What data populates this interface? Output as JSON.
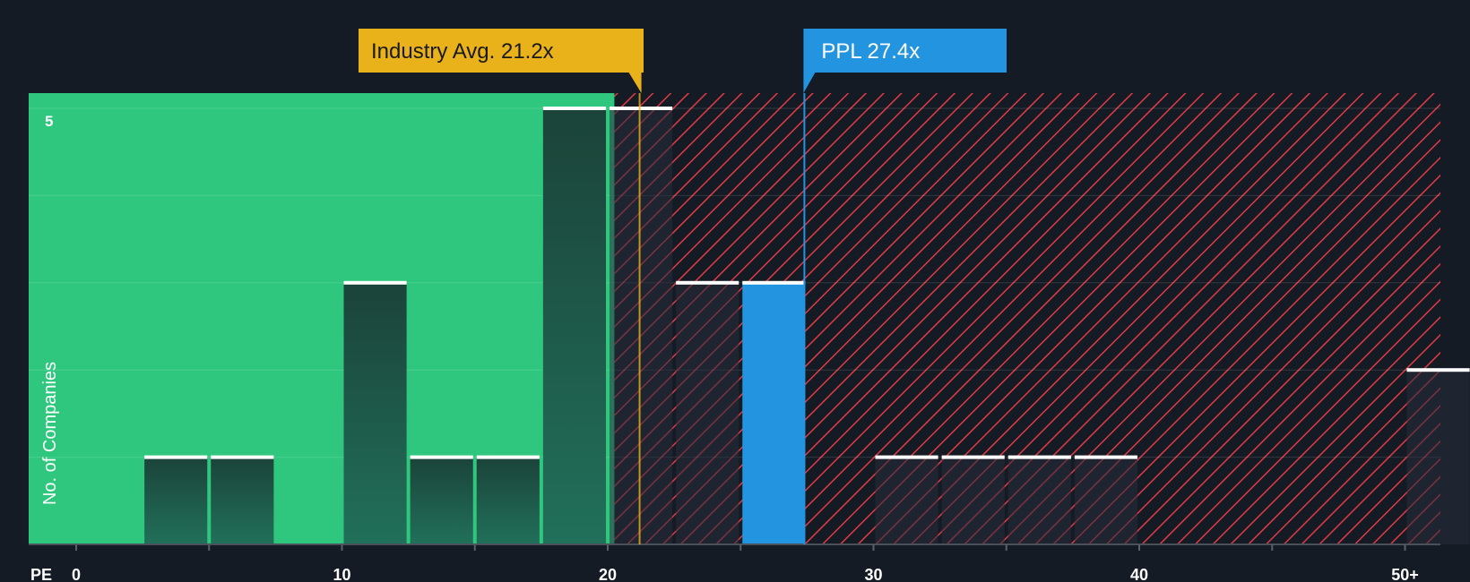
{
  "chart_data": {
    "type": "bar",
    "xlabel": "PE",
    "ylabel": "No. of Companies",
    "x_ticks": [
      {
        "value": 0,
        "label": "0"
      },
      {
        "value": 10,
        "label": "10"
      },
      {
        "value": 20,
        "label": "20"
      },
      {
        "value": 30,
        "label": "30"
      },
      {
        "value": 40,
        "label": "40"
      },
      {
        "value": 50,
        "label": "50+"
      }
    ],
    "y_ticks": [
      {
        "value": 5,
        "label": "5"
      }
    ],
    "ylim": [
      0,
      5.2
    ],
    "bin_width": 2.5,
    "bins": [
      {
        "x0": 2.5,
        "count": 1
      },
      {
        "x0": 5.0,
        "count": 1
      },
      {
        "x0": 10.0,
        "count": 3
      },
      {
        "x0": 12.5,
        "count": 1
      },
      {
        "x0": 15.0,
        "count": 1
      },
      {
        "x0": 17.5,
        "count": 5
      },
      {
        "x0": 20.0,
        "count": 5
      },
      {
        "x0": 22.5,
        "count": 3
      },
      {
        "x0": 25.0,
        "count": 3,
        "highlight": true
      },
      {
        "x0": 30.0,
        "count": 1
      },
      {
        "x0": 32.5,
        "count": 1
      },
      {
        "x0": 35.0,
        "count": 1
      },
      {
        "x0": 37.5,
        "count": 1
      },
      {
        "x0": 50.0,
        "count": 2
      }
    ],
    "fair_zone_end": 20.25,
    "industry_avg": {
      "label": "Industry Avg. 21.2x",
      "value": 21.2
    },
    "company": {
      "label": "PPL 27.4x",
      "value": 27.4
    },
    "colors": {
      "background": "#151b24",
      "fair_zone": "#2ec77d",
      "overvalued_hatch": "#e03a45",
      "bar_dark": "#1e4a3e",
      "highlight_bar": "#2394e0",
      "industry_marker": "#e9b21b",
      "company_marker": "#2394e0",
      "bar_cap": "#ffffff",
      "text": "#ffffff"
    }
  }
}
